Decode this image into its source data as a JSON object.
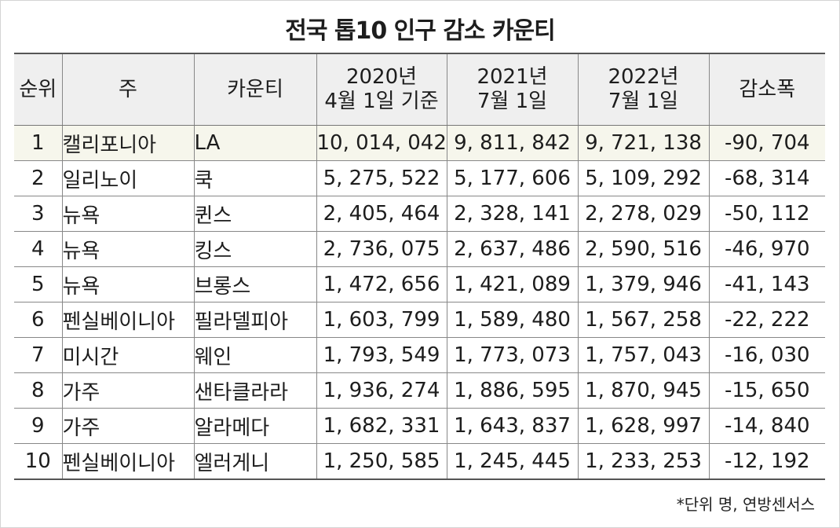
{
  "title": "전국 톱10 인구 감소 카운티",
  "headers": {
    "rank": "순위",
    "state": "주",
    "county": "카운티",
    "y2020_line1": "2020년",
    "y2020_line2": "4월 1일 기준",
    "y2021_line1": "2021년",
    "y2021_line2": "7월 1일",
    "y2022_line1": "2022년",
    "y2022_line2": "7월 1일",
    "decrease": "감소폭"
  },
  "rows": [
    {
      "rank": "1",
      "state": "캘리포니아",
      "county": "LA",
      "y2020": "10, 014, 042",
      "y2021": "9, 811, 842",
      "y2022": "9, 721, 138",
      "decrease": "-90, 704"
    },
    {
      "rank": "2",
      "state": "일리노이",
      "county": "쿡",
      "y2020": "5, 275, 522",
      "y2021": "5, 177, 606",
      "y2022": "5, 109, 292",
      "decrease": "-68, 314"
    },
    {
      "rank": "3",
      "state": "뉴욕",
      "county": "퀸스",
      "y2020": "2, 405, 464",
      "y2021": "2, 328, 141",
      "y2022": "2, 278, 029",
      "decrease": "-50, 112"
    },
    {
      "rank": "4",
      "state": "뉴욕",
      "county": "킹스",
      "y2020": "2, 736, 075",
      "y2021": "2, 637, 486",
      "y2022": "2, 590, 516",
      "decrease": "-46, 970"
    },
    {
      "rank": "5",
      "state": "뉴욕",
      "county": "브롱스",
      "y2020": "1, 472, 656",
      "y2021": "1, 421, 089",
      "y2022": "1, 379, 946",
      "decrease": "-41, 143"
    },
    {
      "rank": "6",
      "state": "펜실베이니아",
      "county": "필라델피아",
      "y2020": "1, 603, 799",
      "y2021": "1, 589, 480",
      "y2022": "1, 567, 258",
      "decrease": "-22, 222"
    },
    {
      "rank": "7",
      "state": "미시간",
      "county": "웨인",
      "y2020": "1, 793, 549",
      "y2021": "1, 773, 073",
      "y2022": "1, 757, 043",
      "decrease": "-16, 030"
    },
    {
      "rank": "8",
      "state": "가주",
      "county": "샌타클라라",
      "y2020": "1, 936, 274",
      "y2021": "1, 886, 595",
      "y2022": "1, 870, 945",
      "decrease": "-15, 650"
    },
    {
      "rank": "9",
      "state": "가주",
      "county": "알라메다",
      "y2020": "1, 682, 331",
      "y2021": "1, 643, 837",
      "y2022": "1, 628, 997",
      "decrease": "-14, 840"
    },
    {
      "rank": "10",
      "state": "펜실베이니아",
      "county": "엘러게니",
      "y2020": "1, 250, 585",
      "y2021": "1, 245, 445",
      "y2022": "1, 233, 253",
      "decrease": "-12, 192"
    }
  ],
  "note": "*단위 명, 연방센서스",
  "colors": {
    "header_bg": "#efefef",
    "highlight_row_bg": "#f6f6ec",
    "border": "#888888"
  }
}
